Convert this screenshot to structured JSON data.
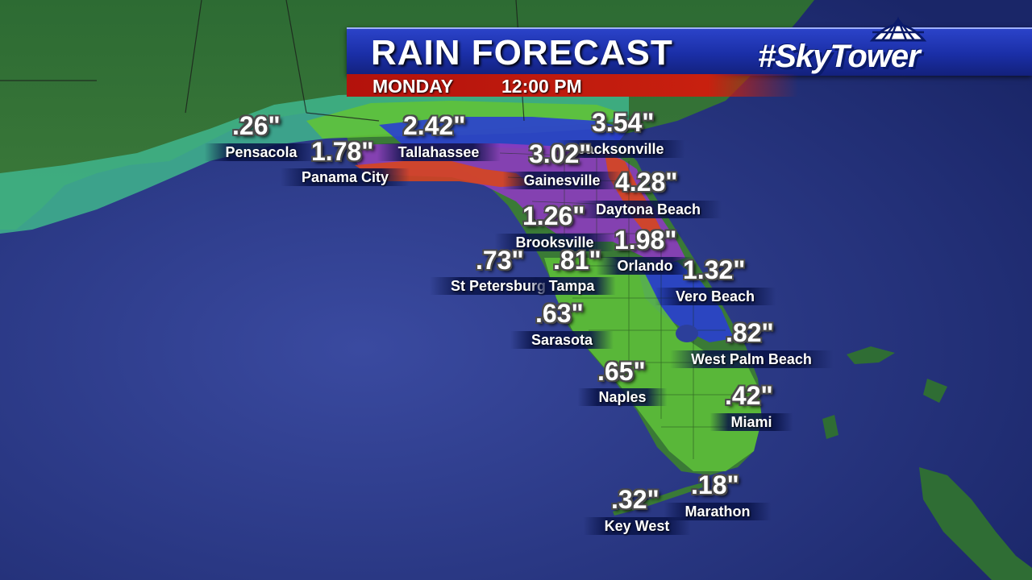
{
  "title": "RAIN FORECAST",
  "day": "MONDAY",
  "time": "12:00 PM",
  "logo": "#SkyTower",
  "colors": {
    "ocean": "#22307a",
    "land": "#2f6a32",
    "banner": "#1f34b5",
    "subbar": "#c21a0e",
    "rain_light": "#3fb58c",
    "rain_moderate": "#5fc23a",
    "rain_heavy": "#2a3fd0",
    "rain_very_heavy": "#8d3bbf",
    "rain_extreme": "#d8451a"
  },
  "locations": [
    {
      "name": "Pensacola",
      "value": ".26\""
    },
    {
      "name": "Panama City",
      "value": "1.78\""
    },
    {
      "name": "Tallahassee",
      "value": "2.42\""
    },
    {
      "name": "Jacksonville",
      "value": "3.54\""
    },
    {
      "name": "Gainesville",
      "value": "3.02\""
    },
    {
      "name": "Daytona Beach",
      "value": "4.28\""
    },
    {
      "name": "Brooksville",
      "value": "1.26\""
    },
    {
      "name": "Orlando",
      "value": "1.98\""
    },
    {
      "name": "St Petersburg",
      "value": ".73\""
    },
    {
      "name": "Tampa",
      "value": ".81\""
    },
    {
      "name": "Vero Beach",
      "value": "1.32\""
    },
    {
      "name": "Sarasota",
      "value": ".63\""
    },
    {
      "name": "West Palm Beach",
      "value": ".82\""
    },
    {
      "name": "Naples",
      "value": ".65\""
    },
    {
      "name": "Miami",
      "value": ".42\""
    },
    {
      "name": "Key West",
      "value": ".32\""
    },
    {
      "name": "Marathon",
      "value": ".18\""
    }
  ]
}
